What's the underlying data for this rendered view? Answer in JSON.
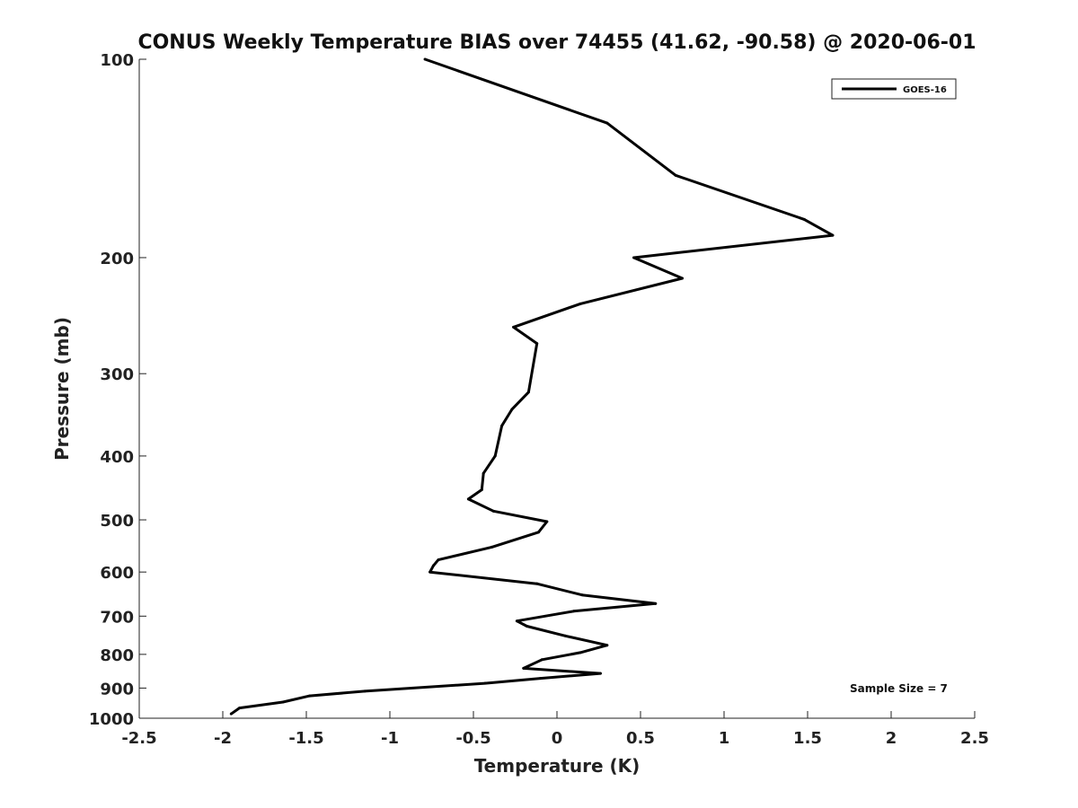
{
  "chart_data": {
    "type": "line",
    "title": "CONUS Weekly Temperature BIAS over 74455 (41.62, -90.58) @ 2020-06-01",
    "xlabel": "Temperature (K)",
    "ylabel": "Pressure (mb)",
    "xlim": [
      -2.5,
      2.5
    ],
    "ylim": [
      1000,
      100
    ],
    "yscale": "log",
    "grid": false,
    "legend_position": "top-right",
    "xticks": [
      {
        "value": -2.5,
        "label": "-2.5"
      },
      {
        "value": -2,
        "label": "-2"
      },
      {
        "value": -1.5,
        "label": "-1.5"
      },
      {
        "value": -1,
        "label": "-1"
      },
      {
        "value": -0.5,
        "label": "-0.5"
      },
      {
        "value": 0,
        "label": "0"
      },
      {
        "value": 0.5,
        "label": "0.5"
      },
      {
        "value": 1,
        "label": "1"
      },
      {
        "value": 1.5,
        "label": "1.5"
      },
      {
        "value": 2,
        "label": "2"
      },
      {
        "value": 2.5,
        "label": "2.5"
      }
    ],
    "yticks": [
      {
        "value": 100,
        "label": "100"
      },
      {
        "value": 200,
        "label": "200"
      },
      {
        "value": 300,
        "label": "300"
      },
      {
        "value": 400,
        "label": "400"
      },
      {
        "value": 500,
        "label": "500"
      },
      {
        "value": 600,
        "label": "600"
      },
      {
        "value": 700,
        "label": "700"
      },
      {
        "value": 800,
        "label": "800"
      },
      {
        "value": 900,
        "label": "900"
      },
      {
        "value": 1000,
        "label": "1000"
      }
    ],
    "series": [
      {
        "name": "GOES-16",
        "color": "#000000",
        "points": [
          {
            "x": -0.79,
            "y": 100
          },
          {
            "x": 0.3,
            "y": 125
          },
          {
            "x": 0.71,
            "y": 150
          },
          {
            "x": 1.48,
            "y": 175
          },
          {
            "x": 1.65,
            "y": 185
          },
          {
            "x": 0.46,
            "y": 200
          },
          {
            "x": 0.75,
            "y": 215
          },
          {
            "x": 0.14,
            "y": 235
          },
          {
            "x": -0.26,
            "y": 255
          },
          {
            "x": -0.12,
            "y": 270
          },
          {
            "x": -0.17,
            "y": 320
          },
          {
            "x": -0.27,
            "y": 340
          },
          {
            "x": -0.33,
            "y": 360
          },
          {
            "x": -0.37,
            "y": 400
          },
          {
            "x": -0.44,
            "y": 425
          },
          {
            "x": -0.45,
            "y": 450
          },
          {
            "x": -0.53,
            "y": 465
          },
          {
            "x": -0.38,
            "y": 485
          },
          {
            "x": -0.06,
            "y": 503
          },
          {
            "x": -0.11,
            "y": 522
          },
          {
            "x": -0.39,
            "y": 550
          },
          {
            "x": -0.71,
            "y": 575
          },
          {
            "x": -0.74,
            "y": 587
          },
          {
            "x": -0.76,
            "y": 600
          },
          {
            "x": -0.12,
            "y": 625
          },
          {
            "x": 0.15,
            "y": 650
          },
          {
            "x": 0.59,
            "y": 670
          },
          {
            "x": 0.1,
            "y": 688
          },
          {
            "x": -0.24,
            "y": 712
          },
          {
            "x": -0.18,
            "y": 725
          },
          {
            "x": 0.05,
            "y": 750
          },
          {
            "x": 0.3,
            "y": 775
          },
          {
            "x": 0.14,
            "y": 795
          },
          {
            "x": -0.09,
            "y": 815
          },
          {
            "x": -0.2,
            "y": 840
          },
          {
            "x": 0.26,
            "y": 855
          },
          {
            "x": -0.1,
            "y": 870
          },
          {
            "x": -0.43,
            "y": 885
          },
          {
            "x": -1.15,
            "y": 910
          },
          {
            "x": -1.48,
            "y": 925
          },
          {
            "x": -1.64,
            "y": 945
          },
          {
            "x": -1.9,
            "y": 965
          },
          {
            "x": -1.95,
            "y": 985
          }
        ]
      }
    ],
    "annotations": [
      "Sample Size = 7"
    ]
  }
}
